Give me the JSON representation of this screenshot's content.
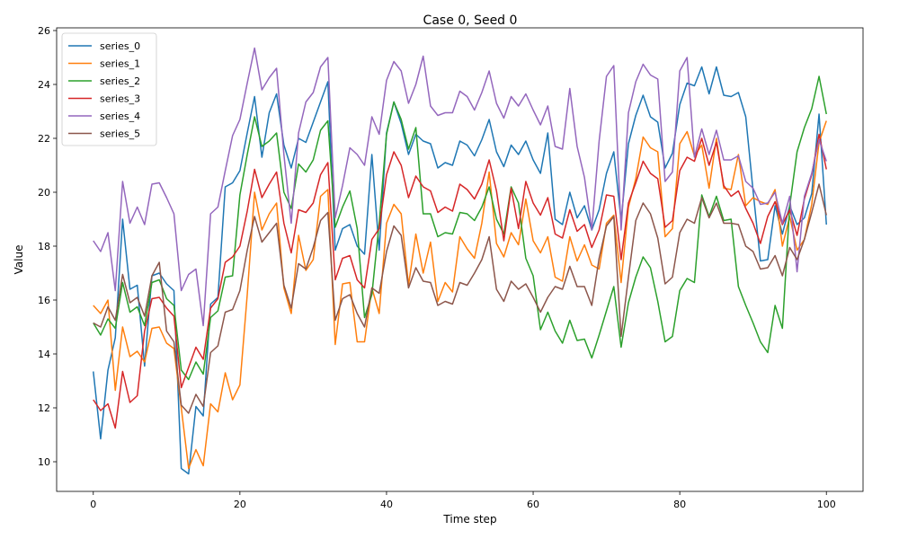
{
  "chart_data": {
    "type": "line",
    "title": "Case 0, Seed 0",
    "xlabel": "Time step",
    "ylabel": "Value",
    "xlim": [
      -5,
      105
    ],
    "ylim": [
      8.9,
      26.1
    ],
    "x_ticks": [
      0,
      20,
      40,
      60,
      80,
      100
    ],
    "y_ticks": [
      10,
      12,
      14,
      16,
      18,
      20,
      22,
      24,
      26
    ],
    "grid": false,
    "legend_position": "upper-left",
    "x": [
      0,
      1,
      2,
      3,
      4,
      5,
      6,
      7,
      8,
      9,
      10,
      11,
      12,
      13,
      14,
      15,
      16,
      17,
      18,
      19,
      20,
      21,
      22,
      23,
      24,
      25,
      26,
      27,
      28,
      29,
      30,
      31,
      32,
      33,
      34,
      35,
      36,
      37,
      38,
      39,
      40,
      41,
      42,
      43,
      44,
      45,
      46,
      47,
      48,
      49,
      50,
      51,
      52,
      53,
      54,
      55,
      56,
      57,
      58,
      59,
      60,
      61,
      62,
      63,
      64,
      65,
      66,
      67,
      68,
      69,
      70,
      71,
      72,
      73,
      74,
      75,
      76,
      77,
      78,
      79,
      80,
      81,
      82,
      83,
      84,
      85,
      86,
      87,
      88,
      89,
      90,
      91,
      92,
      93,
      94,
      95,
      96,
      97,
      98,
      99,
      100
    ],
    "series": [
      {
        "name": "series_0",
        "color": "#1f77b4",
        "values": [
          13.35,
          10.85,
          13.4,
          14.6,
          19.0,
          16.4,
          16.55,
          13.55,
          16.9,
          17.0,
          16.6,
          16.35,
          9.75,
          9.55,
          12.05,
          11.7,
          15.85,
          16.1,
          20.2,
          20.35,
          20.8,
          22.2,
          23.55,
          21.3,
          22.95,
          23.65,
          21.75,
          20.9,
          22.0,
          21.85,
          22.6,
          23.35,
          24.1,
          17.85,
          18.65,
          18.8,
          18.0,
          17.7,
          21.4,
          17.85,
          22.2,
          23.35,
          22.55,
          21.4,
          22.15,
          21.9,
          21.8,
          20.9,
          21.1,
          21.0,
          21.9,
          21.75,
          21.35,
          21.95,
          22.7,
          21.5,
          20.95,
          21.75,
          21.4,
          21.9,
          21.2,
          20.7,
          22.2,
          19.0,
          18.8,
          20.0,
          19.05,
          19.5,
          18.6,
          19.35,
          20.7,
          21.5,
          18.95,
          21.8,
          22.85,
          23.6,
          22.8,
          22.6,
          20.9,
          21.45,
          23.25,
          24.05,
          23.95,
          24.65,
          23.65,
          24.65,
          23.6,
          23.55,
          23.7,
          22.8,
          20.05,
          17.45,
          17.5,
          19.5,
          18.45,
          19.5,
          18.8,
          19.05,
          19.95,
          22.9,
          18.8
        ]
      },
      {
        "name": "series_1",
        "color": "#ff7f0e",
        "values": [
          15.8,
          15.5,
          16.0,
          12.65,
          15.0,
          13.9,
          14.1,
          13.7,
          14.95,
          15.0,
          14.4,
          14.2,
          12.0,
          9.75,
          10.45,
          9.85,
          12.15,
          11.85,
          13.3,
          12.3,
          12.85,
          16.2,
          20.0,
          18.6,
          19.2,
          19.6,
          16.45,
          15.5,
          18.4,
          17.1,
          17.5,
          19.85,
          20.1,
          14.35,
          16.6,
          16.65,
          14.45,
          14.45,
          16.45,
          15.5,
          18.85,
          19.55,
          19.2,
          16.55,
          18.45,
          17.0,
          18.15,
          15.95,
          16.65,
          16.3,
          18.35,
          17.9,
          17.55,
          18.85,
          20.75,
          18.1,
          17.6,
          18.5,
          18.05,
          19.75,
          18.2,
          17.75,
          18.35,
          16.85,
          16.7,
          18.35,
          17.45,
          18.05,
          17.3,
          17.15,
          18.85,
          19.15,
          16.65,
          19.45,
          20.5,
          22.05,
          21.65,
          21.5,
          18.35,
          18.65,
          21.8,
          22.25,
          21.35,
          21.75,
          20.15,
          22.0,
          20.15,
          20.1,
          21.4,
          19.5,
          19.8,
          19.65,
          19.55,
          20.1,
          18.0,
          19.1,
          17.85,
          18.25,
          19.55,
          21.85,
          22.65
        ]
      },
      {
        "name": "series_2",
        "color": "#2ca02c",
        "values": [
          15.15,
          14.7,
          15.3,
          14.95,
          16.65,
          15.55,
          15.75,
          15.05,
          16.65,
          16.75,
          16.05,
          15.8,
          13.4,
          13.05,
          13.7,
          13.25,
          15.35,
          15.6,
          16.85,
          16.9,
          19.9,
          21.4,
          22.8,
          21.7,
          21.9,
          22.2,
          20.0,
          19.4,
          21.05,
          20.75,
          21.2,
          22.3,
          22.65,
          18.7,
          19.45,
          20.05,
          18.65,
          15.35,
          16.2,
          18.85,
          22.15,
          23.35,
          22.7,
          21.6,
          22.4,
          19.2,
          19.2,
          18.35,
          18.5,
          18.45,
          19.25,
          19.2,
          18.95,
          19.45,
          20.2,
          19.0,
          18.45,
          20.2,
          19.6,
          17.55,
          16.9,
          14.9,
          15.55,
          14.85,
          14.4,
          15.25,
          14.5,
          14.55,
          13.85,
          14.7,
          15.6,
          16.5,
          14.25,
          15.9,
          16.85,
          17.6,
          17.2,
          15.95,
          14.45,
          14.65,
          16.35,
          16.8,
          16.65,
          19.9,
          19.1,
          19.85,
          18.95,
          19.0,
          16.5,
          15.8,
          15.15,
          14.45,
          14.05,
          15.8,
          14.95,
          19.5,
          21.5,
          22.4,
          23.1,
          24.3,
          22.9
        ]
      },
      {
        "name": "series_3",
        "color": "#d62728",
        "values": [
          12.3,
          11.9,
          12.15,
          11.25,
          13.35,
          12.2,
          12.45,
          14.85,
          16.05,
          16.1,
          15.7,
          15.4,
          12.75,
          13.5,
          14.25,
          13.8,
          15.7,
          16.05,
          17.4,
          17.6,
          18.0,
          19.3,
          20.85,
          19.8,
          20.3,
          20.75,
          18.85,
          17.75,
          19.35,
          19.25,
          19.6,
          20.65,
          21.1,
          16.75,
          17.55,
          17.65,
          16.75,
          16.45,
          18.25,
          18.65,
          20.65,
          21.5,
          21.0,
          19.8,
          20.6,
          20.2,
          20.05,
          19.25,
          19.45,
          19.3,
          20.3,
          20.1,
          19.75,
          20.3,
          21.2,
          20.05,
          18.2,
          20.15,
          18.65,
          20.4,
          19.6,
          19.15,
          19.8,
          18.45,
          18.3,
          19.35,
          18.55,
          18.8,
          17.95,
          18.6,
          19.9,
          19.85,
          17.5,
          19.6,
          20.35,
          21.15,
          20.7,
          20.5,
          18.7,
          18.95,
          20.8,
          21.3,
          21.15,
          22.0,
          21.0,
          21.85,
          20.25,
          19.85,
          20.05,
          19.4,
          18.85,
          18.1,
          19.1,
          19.65,
          18.8,
          19.35,
          18.4,
          19.75,
          20.65,
          22.15,
          20.85
        ]
      },
      {
        "name": "series_4",
        "color": "#9467bd",
        "values": [
          18.2,
          17.8,
          18.5,
          16.35,
          20.4,
          18.85,
          19.45,
          18.8,
          20.3,
          20.35,
          19.8,
          19.2,
          16.35,
          16.95,
          17.15,
          15.05,
          19.2,
          19.45,
          20.8,
          22.1,
          22.7,
          24.05,
          25.35,
          23.8,
          24.25,
          24.6,
          21.4,
          18.85,
          22.2,
          23.35,
          23.7,
          24.65,
          25.0,
          19.05,
          20.25,
          21.65,
          21.4,
          21.0,
          22.8,
          22.15,
          24.15,
          24.85,
          24.5,
          23.3,
          24.0,
          25.05,
          23.2,
          22.85,
          22.95,
          22.95,
          23.75,
          23.55,
          23.05,
          23.7,
          24.5,
          23.3,
          22.75,
          23.55,
          23.2,
          23.65,
          23.05,
          22.5,
          23.2,
          21.7,
          21.6,
          23.85,
          21.7,
          20.55,
          18.6,
          21.9,
          24.3,
          24.7,
          18.6,
          22.95,
          24.1,
          24.75,
          24.35,
          24.2,
          20.4,
          20.75,
          24.5,
          25.0,
          21.3,
          22.35,
          21.4,
          22.3,
          21.2,
          21.2,
          21.35,
          20.4,
          20.15,
          19.55,
          19.6,
          20.0,
          18.85,
          19.85,
          17.05,
          19.85,
          20.7,
          21.95,
          21.15
        ]
      },
      {
        "name": "series_5",
        "color": "#8c564b",
        "values": [
          15.15,
          15.0,
          15.75,
          15.25,
          16.95,
          15.9,
          16.1,
          15.4,
          16.9,
          17.4,
          14.85,
          14.45,
          12.1,
          11.8,
          12.5,
          12.05,
          14.05,
          14.3,
          15.55,
          15.65,
          16.35,
          17.85,
          19.1,
          18.15,
          18.5,
          18.85,
          16.55,
          15.7,
          17.35,
          17.15,
          17.95,
          18.95,
          19.25,
          15.25,
          16.05,
          16.2,
          15.5,
          15.0,
          16.45,
          16.25,
          17.8,
          18.75,
          18.4,
          16.45,
          17.2,
          16.7,
          16.65,
          15.8,
          15.95,
          15.85,
          16.65,
          16.55,
          17.0,
          17.5,
          18.35,
          16.4,
          15.95,
          16.7,
          16.4,
          16.6,
          16.1,
          15.55,
          16.1,
          16.5,
          16.4,
          17.25,
          16.5,
          16.5,
          15.8,
          17.55,
          18.75,
          19.1,
          14.65,
          16.85,
          18.95,
          19.6,
          19.2,
          18.3,
          16.6,
          16.85,
          18.5,
          19.0,
          18.85,
          19.8,
          19.05,
          19.6,
          18.85,
          18.85,
          18.8,
          18.0,
          17.8,
          17.15,
          17.2,
          17.65,
          16.9,
          17.95,
          17.5,
          18.25,
          19.25,
          20.3,
          19.15
        ]
      }
    ]
  }
}
